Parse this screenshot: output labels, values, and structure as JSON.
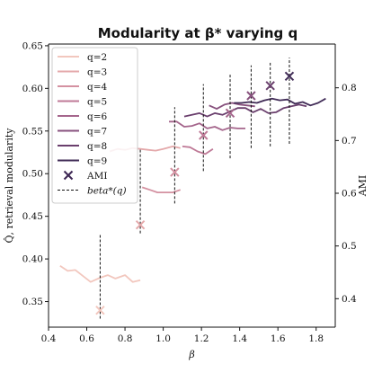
{
  "chart_data": {
    "type": "line",
    "title": "Modularity at β* varying q",
    "xlabel": "β",
    "ylabel": "Q̂, retrieval modularity",
    "y2label": "AMI",
    "xlim": [
      0.4,
      1.9
    ],
    "ylim": [
      0.32,
      0.652
    ],
    "y2lim": [
      0.346,
      0.883
    ],
    "x_ticks": [
      0.4,
      0.6,
      0.8,
      1.0,
      1.2,
      1.4,
      1.6,
      1.8
    ],
    "x_tick_labels": [
      "0.4",
      "0.6",
      "0.8",
      "1.0",
      "1.2",
      "1.4",
      "1.6",
      "1.8"
    ],
    "y_ticks": [
      0.35,
      0.4,
      0.45,
      0.5,
      0.55,
      0.6,
      0.65
    ],
    "y_tick_labels": [
      "0.35",
      "0.40",
      "0.45",
      "0.50",
      "0.55",
      "0.60",
      "0.65"
    ],
    "y2_ticks": [
      0.4,
      0.5,
      0.6,
      0.7,
      0.8
    ],
    "y2_tick_labels": [
      "0.4",
      "0.5",
      "0.6",
      "0.7",
      "0.8"
    ],
    "grid": false,
    "legend_position": "top-left",
    "series": [
      {
        "name": "q=2",
        "color": "#f2c7be",
        "x": [
          0.46,
          0.5,
          0.54,
          0.58,
          0.62,
          0.67,
          0.71,
          0.75,
          0.8,
          0.84,
          0.88
        ],
        "y": [
          0.392,
          0.386,
          0.387,
          0.38,
          0.373,
          0.378,
          0.381,
          0.377,
          0.381,
          0.373,
          0.375
        ]
      },
      {
        "name": "q=3",
        "color": "#e4a9ab",
        "x": [
          0.72,
          0.76,
          0.8,
          0.84,
          0.88,
          0.92,
          0.96,
          1.0,
          1.05,
          1.09
        ],
        "y": [
          0.526,
          0.529,
          0.528,
          0.53,
          0.529,
          0.528,
          0.527,
          0.529,
          0.532,
          0.53
        ]
      },
      {
        "name": "q=4",
        "color": "#d491a1",
        "x": [
          0.89,
          0.93,
          0.97,
          1.01,
          1.05,
          1.09
        ],
        "y": [
          0.484,
          0.481,
          0.478,
          0.478,
          0.478,
          0.481
        ]
      },
      {
        "name": "q=5",
        "color": "#bf7a97",
        "x": [
          1.1,
          1.14,
          1.18,
          1.22,
          1.26
        ],
        "y": [
          0.532,
          0.531,
          0.526,
          0.523,
          0.529
        ]
      },
      {
        "name": "q=6",
        "color": "#a5668c",
        "x": [
          1.03,
          1.07,
          1.11,
          1.15,
          1.19,
          1.23,
          1.27,
          1.31,
          1.35,
          1.39,
          1.43
        ],
        "y": [
          0.561,
          0.561,
          0.555,
          0.556,
          0.559,
          0.553,
          0.555,
          0.551,
          0.554,
          0.553,
          0.553
        ]
      },
      {
        "name": "q=7",
        "color": "#88527e",
        "x": [
          1.24,
          1.28,
          1.32,
          1.36,
          1.4,
          1.44,
          1.48
        ],
        "y": [
          0.58,
          0.576,
          0.581,
          0.583,
          0.581,
          0.58,
          0.579
        ]
      },
      {
        "name": "q=8",
        "color": "#6a3f6d",
        "x": [
          1.11,
          1.15,
          1.19,
          1.23,
          1.27,
          1.31,
          1.35,
          1.39,
          1.43,
          1.47,
          1.51,
          1.55,
          1.59,
          1.63,
          1.67,
          1.71,
          1.75
        ],
        "y": [
          0.567,
          0.569,
          0.571,
          0.567,
          0.571,
          0.569,
          0.573,
          0.577,
          0.577,
          0.572,
          0.576,
          0.571,
          0.572,
          0.577,
          0.579,
          0.581,
          0.579
        ]
      },
      {
        "name": "q=9",
        "color": "#412c57",
        "x": [
          1.37,
          1.41,
          1.45,
          1.49,
          1.53,
          1.57,
          1.61,
          1.65,
          1.69,
          1.73,
          1.77,
          1.81,
          1.85
        ],
        "y": [
          0.583,
          0.583,
          0.584,
          0.583,
          0.586,
          0.588,
          0.586,
          0.587,
          0.582,
          0.584,
          0.58,
          0.583,
          0.588
        ]
      }
    ],
    "ami": {
      "name": "AMI",
      "color": "#3d2754",
      "points": [
        {
          "beta": 0.67,
          "ami": 0.378,
          "color": "#f2c7be"
        },
        {
          "beta": 0.88,
          "ami": 0.54,
          "color": "#e4a9ab"
        },
        {
          "beta": 1.06,
          "ami": 0.64,
          "color": "#d491a1"
        },
        {
          "beta": 1.21,
          "ami": 0.71,
          "color": "#bf7a97"
        },
        {
          "beta": 1.35,
          "ami": 0.752,
          "color": "#a5668c"
        },
        {
          "beta": 1.46,
          "ami": 0.785,
          "color": "#88527e"
        },
        {
          "beta": 1.56,
          "ami": 0.804,
          "color": "#6a3f6d"
        },
        {
          "beta": 1.66,
          "ami": 0.822,
          "color": "#412c57"
        }
      ]
    },
    "beta_star": {
      "name": "beta*(q)",
      "lines": [
        {
          "x": 0.67,
          "y0": 0.33,
          "y1": 0.43
        },
        {
          "x": 0.88,
          "y0": 0.43,
          "y1": 0.53
        },
        {
          "x": 1.06,
          "y0": 0.465,
          "y1": 0.578
        },
        {
          "x": 1.21,
          "y0": 0.503,
          "y1": 0.605
        },
        {
          "x": 1.35,
          "y0": 0.518,
          "y1": 0.618
        },
        {
          "x": 1.46,
          "y0": 0.53,
          "y1": 0.627
        },
        {
          "x": 1.56,
          "y0": 0.532,
          "y1": 0.632
        },
        {
          "x": 1.66,
          "y0": 0.535,
          "y1": 0.636
        }
      ]
    },
    "legend_entries": [
      "q=2",
      "q=3",
      "q=4",
      "q=5",
      "q=6",
      "q=7",
      "q=8",
      "q=9",
      "AMI",
      "beta*(q)"
    ]
  }
}
